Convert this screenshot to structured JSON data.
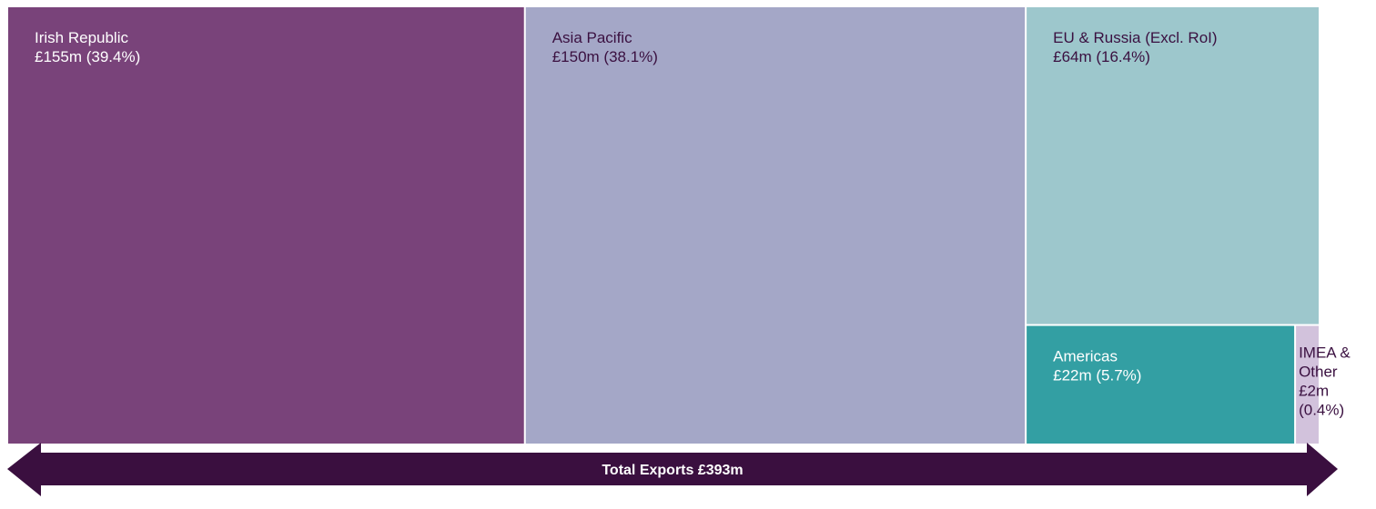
{
  "chart_data": {
    "type": "treemap",
    "unit": "£m",
    "tiles": [
      {
        "name": "Irish Republic",
        "value": 155,
        "value_label": "£155m (39.4%)",
        "percent": 39.4,
        "color": "#79437a",
        "text_color": "#ffffff"
      },
      {
        "name": "Asia Pacific",
        "value": 150,
        "value_label": "£150m (38.1%)",
        "percent": 38.1,
        "color": "#a4a7c7",
        "text_color": "#3a1040"
      },
      {
        "name": "EU & Russia (Excl. RoI)",
        "value": 64,
        "value_label": "£64m (16.4%)",
        "percent": 16.4,
        "color": "#9dc7cc",
        "text_color": "#3a1040"
      },
      {
        "name": "Americas",
        "value": 22,
        "value_label": "£22m (5.7%)",
        "percent": 5.7,
        "color": "#339fa3",
        "text_color": "#ffffff"
      },
      {
        "name": "IMEA & Other",
        "value": 2,
        "value_label": "£2m (0.4%)",
        "percent": 0.4,
        "color": "#d2c2dc",
        "text_color": "#3a1040",
        "label_lines": [
          "IMEA &",
          "Other",
          "£2m",
          "(0.4%)"
        ]
      }
    ],
    "total": {
      "label": "Total Exports £393m",
      "value": 393,
      "color": "#3a0f3f"
    }
  }
}
